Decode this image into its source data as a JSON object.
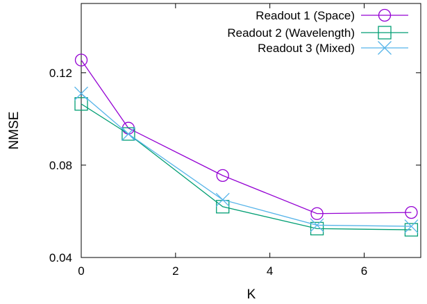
{
  "chart_data": {
    "type": "line",
    "xlabel": "K",
    "ylabel": "NMSE",
    "xlim": [
      0,
      7.2
    ],
    "ylim": [
      0.04,
      0.15
    ],
    "x_ticks": [
      0,
      2,
      4,
      6
    ],
    "y_ticks": [
      0.04,
      0.08,
      0.12
    ],
    "x_tick_labels": [
      "0",
      "2",
      "4",
      "6"
    ],
    "y_tick_labels": [
      "0.04",
      "0.08",
      "0.12"
    ],
    "grid": false,
    "legend_position": "top-right",
    "series": [
      {
        "name": "Readout 1 (Space)",
        "color": "#9400d3",
        "marker": "circle",
        "x": [
          0,
          1,
          3,
          5,
          7
        ],
        "values": [
          0.1255,
          0.096,
          0.0755,
          0.059,
          0.0595
        ]
      },
      {
        "name": "Readout 2 (Wavelength)",
        "color": "#009e73",
        "marker": "square",
        "x": [
          0,
          1,
          3,
          5,
          7
        ],
        "values": [
          0.1065,
          0.0935,
          0.062,
          0.0525,
          0.052
        ]
      },
      {
        "name": "Readout 3 (Mixed)",
        "color": "#56b4e9",
        "marker": "cross",
        "x": [
          0,
          1,
          3,
          5,
          7
        ],
        "values": [
          0.111,
          0.0935,
          0.065,
          0.054,
          0.0535
        ]
      }
    ]
  }
}
